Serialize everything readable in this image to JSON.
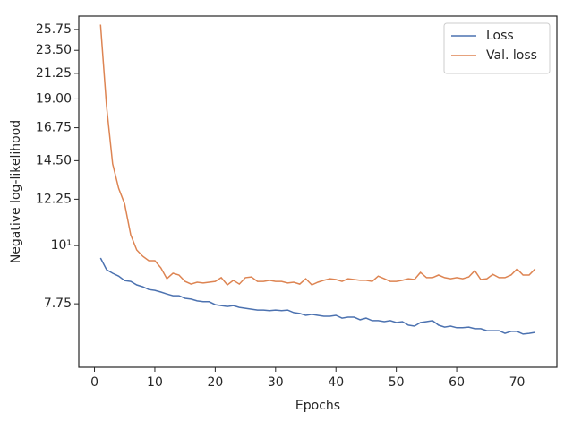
{
  "chart_data": {
    "type": "line",
    "xlabel": "Epochs",
    "ylabel": "Negative log-likelihood",
    "x": [
      1,
      2,
      3,
      4,
      5,
      6,
      7,
      8,
      9,
      10,
      11,
      12,
      13,
      14,
      15,
      16,
      17,
      18,
      19,
      20,
      21,
      22,
      23,
      24,
      25,
      26,
      27,
      28,
      29,
      30,
      31,
      32,
      33,
      34,
      35,
      36,
      37,
      38,
      39,
      40,
      41,
      42,
      43,
      44,
      45,
      46,
      47,
      48,
      49,
      50,
      51,
      52,
      53,
      54,
      55,
      56,
      57,
      58,
      59,
      60,
      61,
      62,
      63,
      64,
      65,
      66,
      67,
      68,
      69,
      70,
      71,
      72,
      73
    ],
    "series": [
      {
        "name": "Loss",
        "color": "#4c72b0",
        "values": [
          9.47,
          9.0,
          8.86,
          8.75,
          8.58,
          8.55,
          8.42,
          8.35,
          8.25,
          8.22,
          8.16,
          8.09,
          8.03,
          8.03,
          7.94,
          7.91,
          7.85,
          7.82,
          7.82,
          7.72,
          7.69,
          7.66,
          7.69,
          7.63,
          7.6,
          7.57,
          7.54,
          7.54,
          7.52,
          7.54,
          7.52,
          7.54,
          7.46,
          7.43,
          7.37,
          7.4,
          7.37,
          7.34,
          7.34,
          7.37,
          7.28,
          7.31,
          7.31,
          7.23,
          7.28,
          7.2,
          7.2,
          7.17,
          7.2,
          7.14,
          7.17,
          7.06,
          7.03,
          7.14,
          7.17,
          7.2,
          7.06,
          7.0,
          7.03,
          6.98,
          6.98,
          7.0,
          6.95,
          6.95,
          6.89,
          6.89,
          6.89,
          6.81,
          6.87,
          6.87,
          6.79,
          6.81,
          6.84
        ]
      },
      {
        "name": "Val. loss",
        "color": "#dd8452",
        "values": [
          26.3,
          18.4,
          14.3,
          12.85,
          12.0,
          10.48,
          9.81,
          9.54,
          9.36,
          9.36,
          9.07,
          8.65,
          8.86,
          8.79,
          8.55,
          8.45,
          8.52,
          8.49,
          8.52,
          8.55,
          8.69,
          8.42,
          8.59,
          8.45,
          8.69,
          8.72,
          8.55,
          8.55,
          8.59,
          8.55,
          8.55,
          8.49,
          8.52,
          8.45,
          8.65,
          8.42,
          8.52,
          8.59,
          8.65,
          8.62,
          8.55,
          8.65,
          8.62,
          8.59,
          8.59,
          8.55,
          8.75,
          8.65,
          8.55,
          8.55,
          8.59,
          8.65,
          8.62,
          8.89,
          8.69,
          8.69,
          8.79,
          8.69,
          8.65,
          8.69,
          8.65,
          8.72,
          8.96,
          8.62,
          8.65,
          8.82,
          8.69,
          8.69,
          8.79,
          9.03,
          8.79,
          8.79,
          9.03
        ]
      }
    ],
    "xlim": [
      -2.6,
      76.6
    ],
    "xticks": [
      0,
      10,
      20,
      30,
      40,
      50,
      60,
      70
    ],
    "ylim": [
      5.87,
      27.3
    ],
    "yscale": "log",
    "yticks": [
      7.75,
      {
        "value": 10,
        "label": "10¹"
      },
      12.25,
      {
        "value": 14.5,
        "label": "14.50"
      },
      16.75,
      {
        "value": 19,
        "label": "19.00"
      },
      21.25,
      {
        "value": 23.5,
        "label": "23.50"
      },
      25.75
    ],
    "legend": "upper right"
  }
}
